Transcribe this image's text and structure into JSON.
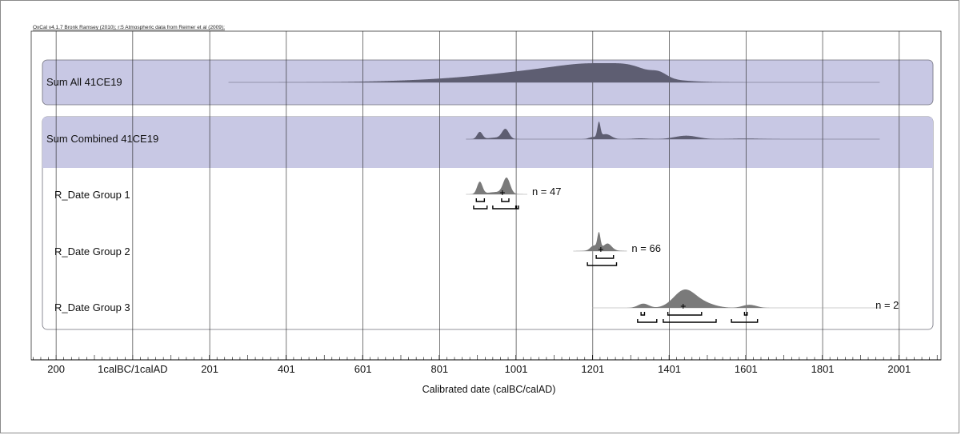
{
  "header": "OxCal v4.1.7 Bronk Ramsey (2010); r:5 Atmospheric data from Reimer et al (2009);",
  "chart_data": {
    "type": "area",
    "title": "",
    "xlabel": "Calibrated date (calBC/calAD)",
    "ylabel": "",
    "grid": true,
    "x_ticks": [
      {
        "value": -200,
        "label": "200"
      },
      {
        "value": 0,
        "label": "1calBC/1calAD"
      },
      {
        "value": 201,
        "label": "201"
      },
      {
        "value": 401,
        "label": "401"
      },
      {
        "value": 601,
        "label": "601"
      },
      {
        "value": 801,
        "label": "801"
      },
      {
        "value": 1001,
        "label": "1001"
      },
      {
        "value": 1201,
        "label": "1201"
      },
      {
        "value": 1401,
        "label": "1401"
      },
      {
        "value": 1601,
        "label": "1601"
      },
      {
        "value": 1801,
        "label": "1801"
      },
      {
        "value": 2001,
        "label": "2001"
      }
    ],
    "xlim": [
      -265,
      2110
    ],
    "series": [
      {
        "name": "Sum All 41CE19",
        "range": [
          250,
          1950
        ],
        "peaks": [
          {
            "center": 940,
            "width": 190,
            "height": 0.36
          },
          {
            "center": 1110,
            "width": 140,
            "height": 0.85
          },
          {
            "center": 1225,
            "width": 90,
            "height": 0.92
          },
          {
            "center": 1305,
            "width": 45,
            "height": 0.55
          },
          {
            "center": 1375,
            "width": 20,
            "height": 0.42
          },
          {
            "center": 1420,
            "width": 65,
            "height": 0.05
          }
        ]
      },
      {
        "name": "Sum Combined 41CE19",
        "range": [
          870,
          1950
        ],
        "peaks": [
          {
            "center": 906,
            "width": 7,
            "height": 0.45
          },
          {
            "center": 973,
            "width": 9,
            "height": 0.6
          },
          {
            "center": 950,
            "width": 22,
            "height": 0.1
          },
          {
            "center": 1217,
            "width": 4,
            "height": 0.95
          },
          {
            "center": 1235,
            "width": 14,
            "height": 0.32
          },
          {
            "center": 1200,
            "width": 10,
            "height": 0.12
          },
          {
            "center": 1325,
            "width": 20,
            "height": 0.05
          },
          {
            "center": 1445,
            "width": 30,
            "height": 0.22
          },
          {
            "center": 1600,
            "width": 40,
            "height": 0.04
          }
        ]
      },
      {
        "name": "R_Date Group 1",
        "n": "n = 47",
        "range": [
          870,
          1030
        ],
        "peaks": [
          {
            "center": 906,
            "width": 7,
            "height": 0.75
          },
          {
            "center": 976,
            "width": 9,
            "height": 0.95
          },
          {
            "center": 950,
            "width": 25,
            "height": 0.14
          }
        ],
        "mean": 965,
        "hpd_68": [
          [
            897,
            918
          ],
          [
            963,
            982
          ]
        ],
        "hpd_95": [
          [
            890,
            925
          ],
          [
            940,
            1000
          ],
          [
            1002,
            1007
          ]
        ]
      },
      {
        "name": "R_Date Group 2",
        "n": "n = 66",
        "range": [
          1150,
          1290
        ],
        "peaks": [
          {
            "center": 1217,
            "width": 4,
            "height": 0.95
          },
          {
            "center": 1240,
            "width": 10,
            "height": 0.35
          },
          {
            "center": 1203,
            "width": 8,
            "height": 0.25
          },
          {
            "center": 1225,
            "width": 25,
            "height": 0.12
          }
        ],
        "mean": 1222,
        "hpd_68": [
          [
            1210,
            1255
          ]
        ],
        "hpd_95": [
          [
            1187,
            1263
          ]
        ]
      },
      {
        "name": "R_Date Group 3",
        "n": "n = 2",
        "range": [
          1200,
          1950
        ],
        "peaks": [
          {
            "center": 1333,
            "width": 14,
            "height": 0.22
          },
          {
            "center": 1440,
            "width": 28,
            "height": 0.9
          },
          {
            "center": 1490,
            "width": 30,
            "height": 0.22
          },
          {
            "center": 1610,
            "width": 18,
            "height": 0.16
          }
        ],
        "mean": 1437,
        "hpd_68": [
          [
            1327,
            1336
          ],
          [
            1397,
            1485
          ],
          [
            1597,
            1604
          ]
        ],
        "hpd_95": [
          [
            1318,
            1368
          ],
          [
            1385,
            1523
          ],
          [
            1563,
            1631
          ]
        ]
      }
    ]
  }
}
